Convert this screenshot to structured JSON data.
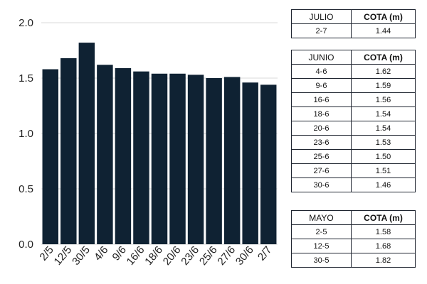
{
  "chart_data": {
    "type": "bar",
    "categories": [
      "2/5",
      "12/5",
      "30/5",
      "4/6",
      "9/6",
      "16/6",
      "18/6",
      "20/6",
      "23/6",
      "25/6",
      "27/6",
      "30/6",
      "2/7"
    ],
    "values": [
      1.58,
      1.68,
      1.82,
      1.62,
      1.59,
      1.56,
      1.54,
      1.54,
      1.53,
      1.5,
      1.51,
      1.46,
      1.44
    ],
    "ylim": [
      0,
      2.0
    ],
    "yticks": [
      "0.0",
      "0.5",
      "1.0",
      "1.5",
      "2.0"
    ],
    "bar_color": "#0f2233",
    "grid": true,
    "title": "",
    "xlabel": "",
    "ylabel": ""
  },
  "tables": {
    "julio": {
      "month": "JULIO",
      "header": "COTA (m)",
      "rows": [
        {
          "date": "2-7",
          "value": "1.44"
        }
      ]
    },
    "junio": {
      "month": "JUNIO",
      "header": "COTA (m)",
      "rows": [
        {
          "date": "4-6",
          "value": "1.62"
        },
        {
          "date": "9-6",
          "value": "1.59"
        },
        {
          "date": "16-6",
          "value": "1.56"
        },
        {
          "date": "18-6",
          "value": "1.54"
        },
        {
          "date": "20-6",
          "value": "1.54"
        },
        {
          "date": "23-6",
          "value": "1.53"
        },
        {
          "date": "25-6",
          "value": "1.50"
        },
        {
          "date": "27-6",
          "value": "1.51"
        },
        {
          "date": "30-6",
          "value": "1.46"
        }
      ]
    },
    "mayo": {
      "month": "MAYO",
      "header": "COTA (m)",
      "rows": [
        {
          "date": "2-5",
          "value": "1.58"
        },
        {
          "date": "12-5",
          "value": "1.68"
        },
        {
          "date": "30-5",
          "value": "1.82"
        }
      ]
    }
  }
}
